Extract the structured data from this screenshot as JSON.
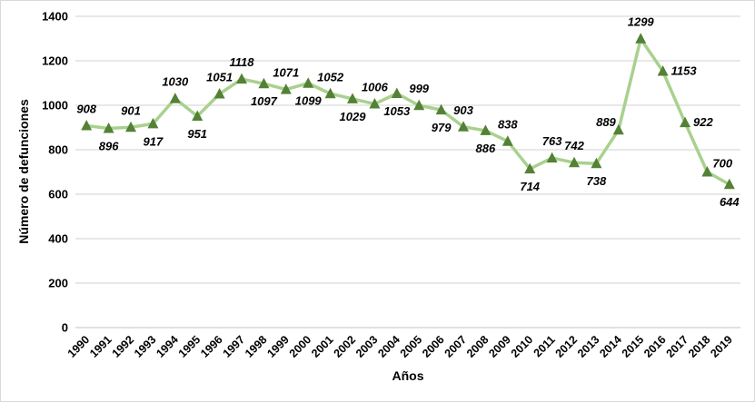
{
  "chart_data": {
    "type": "line",
    "title": "",
    "xlabel": "Años",
    "ylabel": "Número de defunciones",
    "categories": [
      "1990",
      "1991",
      "1992",
      "1993",
      "1994",
      "1995",
      "1996",
      "1997",
      "1998",
      "1999",
      "2000",
      "2001",
      "2002",
      "2003",
      "2004",
      "2005",
      "2006",
      "2007",
      "2008",
      "2009",
      "2010",
      "2011",
      "2012",
      "2013",
      "2014",
      "2015",
      "2016",
      "2017",
      "2018",
      "2019"
    ],
    "values": [
      908,
      896,
      901,
      917,
      1030,
      951,
      1051,
      1118,
      1097,
      1071,
      1099,
      1052,
      1029,
      1006,
      1053,
      999,
      979,
      903,
      886,
      838,
      714,
      763,
      742,
      738,
      889,
      1299,
      1153,
      922,
      700,
      644
    ],
    "ylim": [
      0,
      1400
    ],
    "ytick_interval": 200,
    "grid": true,
    "legend": false,
    "marker": "triangle-up",
    "data_labels": true,
    "label_positions": [
      "above",
      "below",
      "above",
      "below",
      "above",
      "below",
      "above",
      "above",
      "below",
      "above",
      "below",
      "above",
      "below",
      "above",
      "below",
      "above",
      "below",
      "above",
      "below",
      "above",
      "below",
      "above",
      "above",
      "below",
      "above-left",
      "above",
      "right",
      "right",
      "right-up",
      "below"
    ],
    "colors": {
      "line": "#a9d18e",
      "marker": "#538135",
      "gridline": "#d9d9d9",
      "axis_line": "#cfcfcf",
      "text": "#000000"
    }
  }
}
